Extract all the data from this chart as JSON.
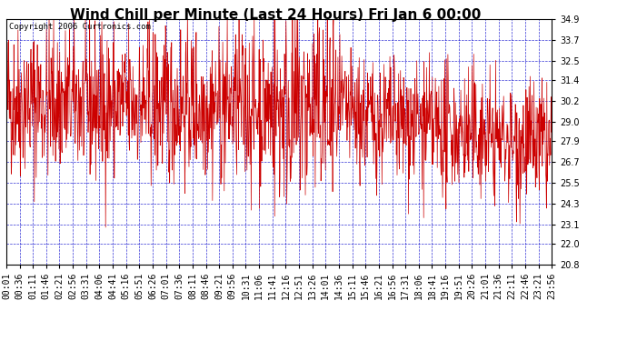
{
  "title": "Wind Chill per Minute (Last 24 Hours) Fri Jan 6 00:00",
  "copyright": "Copyright 2006 Curtronics.com",
  "ylim": [
    20.8,
    34.9
  ],
  "yticks": [
    20.8,
    22.0,
    23.1,
    24.3,
    25.5,
    26.7,
    27.9,
    29.0,
    30.2,
    31.4,
    32.5,
    33.7,
    34.9
  ],
  "background_color": "#ffffff",
  "plot_bg_color": "#ffffff",
  "line_color": "#cc0000",
  "grid_color": "#0000cc",
  "title_fontsize": 11,
  "copyright_fontsize": 6.5,
  "tick_fontsize": 7,
  "num_points": 1440,
  "x_tick_labels": [
    "00:01",
    "00:36",
    "01:11",
    "01:46",
    "02:21",
    "02:56",
    "03:31",
    "04:06",
    "04:41",
    "05:16",
    "05:51",
    "06:26",
    "07:01",
    "07:36",
    "08:11",
    "08:46",
    "09:21",
    "09:56",
    "10:31",
    "11:06",
    "11:41",
    "12:16",
    "12:51",
    "13:26",
    "14:01",
    "14:36",
    "15:11",
    "15:46",
    "16:21",
    "16:56",
    "17:31",
    "18:06",
    "18:41",
    "19:16",
    "19:51",
    "20:26",
    "21:01",
    "21:36",
    "22:11",
    "22:46",
    "23:21",
    "23:56"
  ],
  "seed": 42
}
